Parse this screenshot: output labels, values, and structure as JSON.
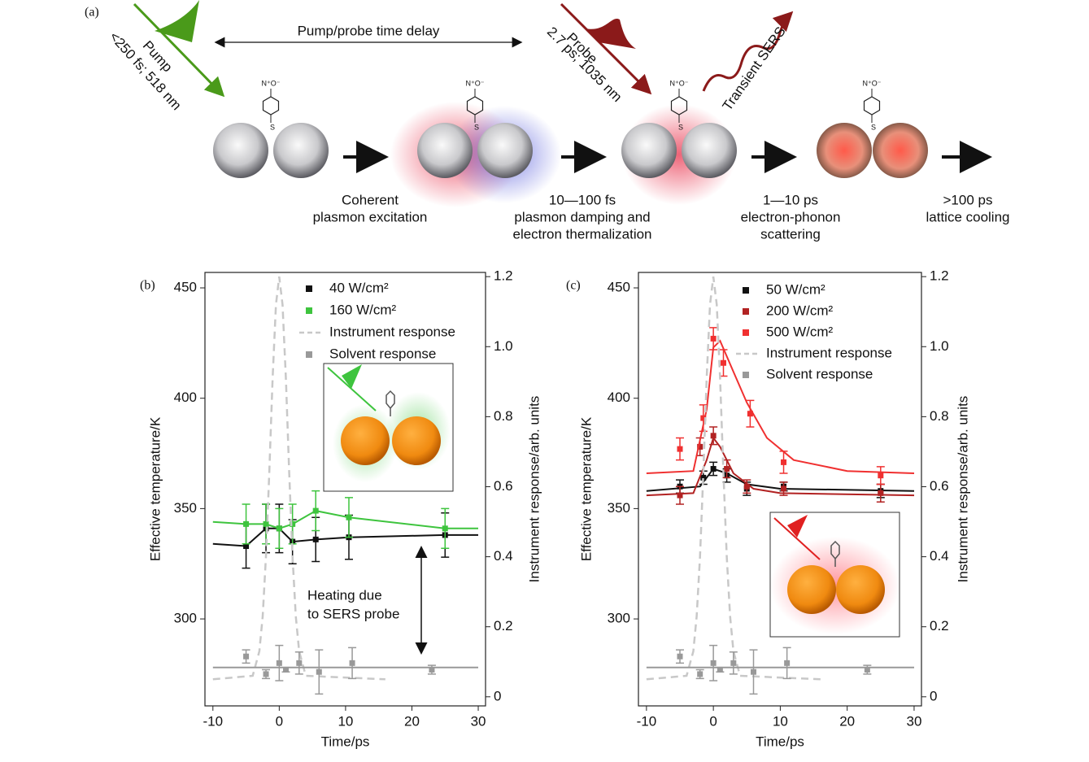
{
  "diagram": {
    "panel_label": "(a)",
    "time_delay": "Pump/probe time delay",
    "pump": [
      "Pump",
      "<250 fs; 518 nm"
    ],
    "probe": [
      "Probe",
      "2.7 ps; 1035 nm"
    ],
    "transient": "Transient SERS",
    "nitro_label": "N⁺O⁻",
    "sulfur_label": "S",
    "captions": [
      [
        "Coherent",
        "plasmon excitation"
      ],
      [
        "10—100 fs",
        "plasmon damping and",
        "electron thermalization"
      ],
      [
        "1—10 ps",
        "electron-phonon",
        "scattering"
      ],
      [
        ">100 ps",
        "lattice cooling"
      ]
    ]
  },
  "chart_data": [
    {
      "type": "scatter",
      "panel_label": "(b)",
      "x_label": "Time/ps",
      "y_label": "Effective temperature/K",
      "y2_label": "Instrument response/arb. units",
      "xlim": [
        -11.2,
        31.1
      ],
      "xticks": [
        -10,
        0,
        10,
        20,
        30
      ],
      "ylim": [
        260.6,
        457
      ],
      "yticks": [
        300,
        350,
        400,
        450
      ],
      "y2lim": [
        -0.026,
        1.212
      ],
      "y2ticks": [
        0,
        0.2,
        0.4,
        0.6,
        0.8,
        {
          "value": 1,
          "label": "1.0"
        },
        1.2
      ],
      "annotation": [
        "Heating due",
        "to SERS probe"
      ],
      "series": [
        {
          "name": "40 W/cm²",
          "color": "#111111",
          "x": [
            -5,
            -2,
            0,
            2,
            5.5,
            10.5,
            25
          ],
          "values": [
            333,
            341,
            341,
            335,
            336,
            337,
            338
          ],
          "errors": [
            10,
            11,
            11,
            10,
            10,
            10,
            10
          ],
          "fit_x": [
            -10,
            -5,
            -2,
            0,
            2,
            5.5,
            10.5,
            25,
            30
          ],
          "fit_values": [
            334,
            333,
            341,
            341,
            335,
            336,
            337,
            338,
            338
          ]
        },
        {
          "name": "160 W/cm²",
          "color": "#3ec43e",
          "x": [
            -5,
            -2,
            0,
            2,
            5.5,
            10.5,
            25
          ],
          "values": [
            343,
            343,
            341,
            343,
            349,
            346,
            341
          ],
          "errors": [
            9,
            9,
            9,
            9,
            9,
            9,
            9
          ],
          "fit_x": [
            -10,
            -5,
            -2,
            0,
            2,
            5.5,
            10.5,
            25,
            30
          ],
          "fit_values": [
            344,
            343,
            343,
            341,
            343,
            349,
            346,
            341,
            341
          ]
        },
        {
          "name": "Instrument response",
          "color": "#c8c8c8",
          "style": "dashed",
          "axis": "y2",
          "x": [
            -10,
            -4,
            -3,
            -2.5,
            -2,
            -1.5,
            -1,
            -0.5,
            0,
            0.5,
            1,
            1.5,
            2,
            2.5,
            3,
            4,
            16
          ],
          "values": [
            0.05,
            0.06,
            0.13,
            0.23,
            0.4,
            0.64,
            0.91,
            1.12,
            1.2,
            1.12,
            0.91,
            0.64,
            0.4,
            0.23,
            0.13,
            0.06,
            0.05
          ]
        },
        {
          "name": "Solvent response",
          "color": "#999999",
          "x": [
            -5,
            -2,
            0,
            1,
            3,
            6,
            11,
            23
          ],
          "values": [
            283,
            275,
            280,
            277,
            280,
            276,
            280,
            277
          ],
          "errors": [
            3,
            2,
            8,
            1,
            5,
            10,
            7,
            2
          ],
          "fit_x": [
            -10,
            30
          ],
          "fit_values": [
            278,
            278
          ]
        }
      ]
    },
    {
      "type": "scatter",
      "panel_label": "(c)",
      "x_label": "Time/ps",
      "y_label": "Effective temperature/K",
      "y2_label": "Instrument response/arb. units",
      "xlim": [
        -11.2,
        31.1
      ],
      "xticks": [
        -10,
        0,
        10,
        20,
        30
      ],
      "ylim": [
        260.6,
        457
      ],
      "yticks": [
        300,
        350,
        400,
        450
      ],
      "y2lim": [
        -0.026,
        1.212
      ],
      "y2ticks": [
        0,
        0.2,
        0.4,
        0.6,
        0.8,
        {
          "value": 1,
          "label": "1.0"
        },
        1.2
      ],
      "series": [
        {
          "name": "50 W/cm²",
          "color": "#111111",
          "x": [
            -5,
            -1.5,
            0,
            2,
            5,
            10.5,
            25
          ],
          "values": [
            360,
            364,
            368,
            365,
            359,
            360,
            358
          ],
          "errors": [
            3,
            3,
            3,
            3,
            3,
            2,
            3
          ],
          "fit_x": [
            -10,
            -2,
            0,
            2,
            5,
            10,
            30
          ],
          "fit_values": [
            358,
            360,
            368,
            366,
            361,
            359,
            358
          ]
        },
        {
          "name": "200 W/cm²",
          "color": "#b22222",
          "x": [
            -5,
            -2,
            0,
            2,
            5,
            10.5,
            25
          ],
          "values": [
            356,
            378,
            383,
            368,
            360,
            359,
            357
          ],
          "errors": [
            4,
            4,
            4,
            4,
            3,
            3,
            4
          ],
          "fit_x": [
            -10,
            -3,
            -1,
            0,
            1,
            3,
            6,
            10,
            30
          ],
          "fit_values": [
            356,
            357,
            372,
            382,
            378,
            366,
            359,
            357,
            356
          ]
        },
        {
          "name": "500 W/cm²",
          "color": "#f03030",
          "x": [
            -5,
            -1.5,
            0,
            1.5,
            5.5,
            10.5,
            25
          ],
          "values": [
            377,
            391,
            427,
            416,
            393,
            371,
            365
          ],
          "errors": [
            5,
            6,
            5,
            6,
            6,
            5,
            4
          ],
          "fit_x": [
            -10,
            -3,
            -1,
            0,
            1,
            3,
            5,
            8,
            12,
            20,
            30
          ],
          "fit_values": [
            366,
            367,
            395,
            423,
            426,
            412,
            398,
            382,
            372,
            367,
            366
          ]
        },
        {
          "name": "Instrument response",
          "color": "#c8c8c8",
          "style": "dashed",
          "axis": "y2",
          "x": [
            -10,
            -4,
            -3,
            -2.5,
            -2,
            -1.5,
            -1,
            -0.5,
            0,
            0.5,
            1,
            1.5,
            2,
            2.5,
            3,
            4,
            16
          ],
          "values": [
            0.05,
            0.06,
            0.13,
            0.23,
            0.4,
            0.64,
            0.91,
            1.12,
            1.2,
            1.12,
            0.91,
            0.64,
            0.4,
            0.23,
            0.13,
            0.06,
            0.05
          ]
        },
        {
          "name": "Solvent response",
          "color": "#999999",
          "x": [
            -5,
            -2,
            0,
            1,
            3,
            6,
            11,
            23
          ],
          "values": [
            283,
            275,
            280,
            277,
            280,
            276,
            280,
            277
          ],
          "errors": [
            3,
            2,
            8,
            1,
            5,
            10,
            7,
            2
          ],
          "fit_x": [
            -10,
            30
          ],
          "fit_values": [
            278,
            278
          ]
        }
      ]
    }
  ]
}
